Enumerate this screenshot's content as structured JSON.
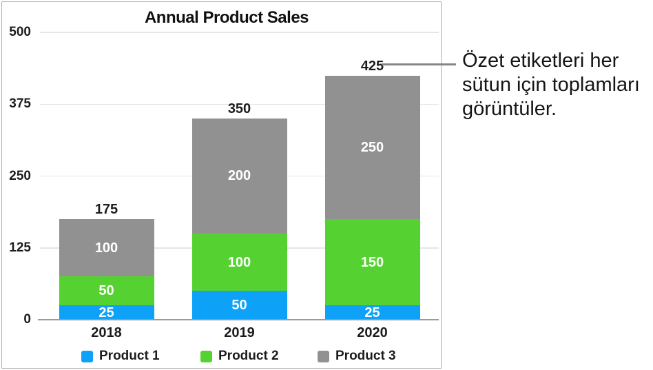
{
  "chart_data": {
    "type": "bar",
    "stacked": true,
    "title": "Annual Product Sales",
    "categories": [
      "2018",
      "2019",
      "2020"
    ],
    "series": [
      {
        "name": "Product 1",
        "color": "#0da2f7",
        "values": [
          25,
          50,
          25
        ]
      },
      {
        "name": "Product 2",
        "color": "#55d232",
        "values": [
          50,
          100,
          150
        ]
      },
      {
        "name": "Product 3",
        "color": "#919191",
        "values": [
          100,
          200,
          250
        ]
      }
    ],
    "totals": [
      "175",
      "350",
      "425"
    ],
    "y_ticks": [
      "0",
      "125",
      "250",
      "375",
      "500"
    ],
    "ylim": [
      0,
      500
    ],
    "grid": true,
    "legend_position": "bottom",
    "axis_color": "#9a9a9a",
    "gridline_color": "#e6e6e6"
  },
  "callout": {
    "text": "Özet etiketleri her sütun için toplamları görüntüler.",
    "points_to_total": "425",
    "line_color": "#868686"
  }
}
